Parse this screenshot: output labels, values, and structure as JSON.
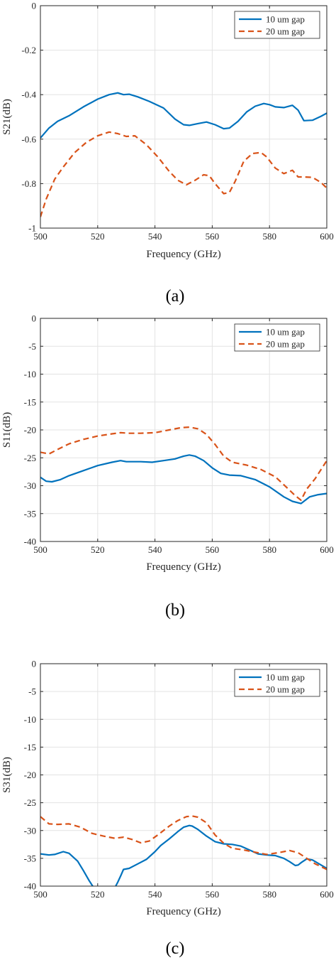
{
  "colors": {
    "series1": "#0072BD",
    "series2": "#D95319",
    "grid": "#e3e3e3",
    "axis": "#262626"
  },
  "chart_data": [
    {
      "type": "line",
      "caption": "(a)",
      "xlabel": "Frequency (GHz)",
      "ylabel": "S21(dB)",
      "xlim": [
        500,
        600
      ],
      "ylim": [
        -1,
        0
      ],
      "xticks": [
        "500",
        "520",
        "540",
        "560",
        "580",
        "600"
      ],
      "yticks": [
        "0",
        "-0.2",
        "-0.4",
        "-0.6",
        "-0.8",
        "-1"
      ],
      "grid": true,
      "legend_position": "top-right",
      "series": [
        {
          "name": "10 um gap",
          "style": "solid",
          "x": [
            500,
            503,
            506,
            510,
            515,
            520,
            524,
            527,
            529,
            531,
            534,
            538,
            543,
            547,
            550,
            552,
            555,
            558,
            561,
            564,
            566,
            569,
            572,
            575,
            578,
            580,
            582,
            585,
            588,
            590,
            592,
            595,
            598,
            600
          ],
          "y": [
            -0.595,
            -0.55,
            -0.52,
            -0.495,
            -0.455,
            -0.42,
            -0.4,
            -0.392,
            -0.4,
            -0.398,
            -0.41,
            -0.43,
            -0.46,
            -0.51,
            -0.535,
            -0.538,
            -0.53,
            -0.523,
            -0.535,
            -0.553,
            -0.55,
            -0.52,
            -0.478,
            -0.452,
            -0.44,
            -0.445,
            -0.455,
            -0.458,
            -0.448,
            -0.47,
            -0.517,
            -0.515,
            -0.497,
            -0.483
          ]
        },
        {
          "name": "20 um gap",
          "style": "dashed",
          "x": [
            500,
            502,
            505,
            508,
            512,
            516,
            520,
            524,
            527,
            530,
            533,
            537,
            541,
            545,
            548,
            551,
            554,
            557,
            559,
            561,
            564,
            566,
            568,
            571,
            574,
            577,
            579,
            582,
            585,
            588,
            590,
            592,
            595,
            598,
            600
          ],
          "y": [
            -0.95,
            -0.87,
            -0.78,
            -0.725,
            -0.66,
            -0.615,
            -0.585,
            -0.568,
            -0.575,
            -0.588,
            -0.585,
            -0.625,
            -0.68,
            -0.745,
            -0.785,
            -0.805,
            -0.785,
            -0.76,
            -0.765,
            -0.8,
            -0.845,
            -0.84,
            -0.79,
            -0.7,
            -0.665,
            -0.66,
            -0.68,
            -0.73,
            -0.755,
            -0.74,
            -0.77,
            -0.77,
            -0.772,
            -0.795,
            -0.82
          ]
        }
      ]
    },
    {
      "type": "line",
      "caption": "(b)",
      "xlabel": "Frequency (GHz)",
      "ylabel": "S11(dB)",
      "xlim": [
        500,
        600
      ],
      "ylim": [
        -40,
        0
      ],
      "xticks": [
        "500",
        "520",
        "540",
        "560",
        "580",
        "600"
      ],
      "yticks": [
        "0",
        "-5",
        "-10",
        "-15",
        "-20",
        "-25",
        "-30",
        "-35",
        "-40"
      ],
      "grid": true,
      "legend_position": "top-right",
      "series": [
        {
          "name": "10 um gap",
          "style": "solid",
          "x": [
            500,
            502,
            504,
            507,
            510,
            515,
            520,
            525,
            528,
            530,
            535,
            539,
            543,
            547,
            550,
            552,
            554,
            557,
            560,
            563,
            566,
            570,
            575,
            580,
            585,
            588,
            591,
            594,
            597,
            600
          ],
          "y": [
            -28.5,
            -29.2,
            -29.3,
            -28.9,
            -28.2,
            -27.3,
            -26.4,
            -25.8,
            -25.5,
            -25.7,
            -25.7,
            -25.8,
            -25.5,
            -25.2,
            -24.7,
            -24.5,
            -24.7,
            -25.5,
            -26.8,
            -27.8,
            -28.1,
            -28.2,
            -28.9,
            -30.2,
            -32.0,
            -32.8,
            -33.2,
            -32.0,
            -31.6,
            -31.4
          ]
        },
        {
          "name": "20 um gap",
          "style": "dashed",
          "x": [
            500,
            503,
            506,
            510,
            515,
            520,
            525,
            528,
            531,
            535,
            540,
            545,
            549,
            552,
            555,
            558,
            561,
            564,
            567,
            572,
            577,
            582,
            586,
            589,
            591,
            593,
            596,
            600
          ],
          "y": [
            -24.0,
            -24.3,
            -23.5,
            -22.5,
            -21.7,
            -21.1,
            -20.7,
            -20.5,
            -20.6,
            -20.6,
            -20.5,
            -20.0,
            -19.6,
            -19.5,
            -19.8,
            -20.8,
            -22.6,
            -24.7,
            -25.8,
            -26.3,
            -27.1,
            -28.4,
            -30.3,
            -31.8,
            -32.6,
            -30.6,
            -28.7,
            -25.5
          ]
        }
      ]
    },
    {
      "type": "line",
      "caption": "(c)",
      "xlabel": "Frequency (GHz)",
      "ylabel": "S31(dB)",
      "xlim": [
        500,
        600
      ],
      "ylim": [
        -40,
        0
      ],
      "xticks": [
        "500",
        "520",
        "540",
        "560",
        "580",
        "600"
      ],
      "yticks": [
        "0",
        "-5",
        "-10",
        "-15",
        "-20",
        "-25",
        "-30",
        "-35",
        "-40"
      ],
      "grid": true,
      "legend_position": "top-right",
      "series": [
        {
          "name": "10 um gap",
          "style": "solid",
          "x": [
            500,
            503,
            505,
            508,
            510,
            513,
            515,
            517,
            519,
            520,
            521,
            525,
            526,
            527,
            528,
            529,
            531,
            534,
            537,
            540,
            542,
            545,
            548,
            550,
            552,
            553,
            555,
            558,
            561,
            564,
            567,
            570,
            573,
            576,
            579,
            582,
            585,
            587,
            589,
            590,
            591,
            593,
            595,
            597,
            600
          ],
          "y": [
            -34.2,
            -34.4,
            -34.3,
            -33.8,
            -34.1,
            -35.5,
            -37.2,
            -39.0,
            -40.6,
            -41,
            -41,
            -41,
            -40.3,
            -39.3,
            -38.2,
            -37.0,
            -36.8,
            -36.0,
            -35.2,
            -33.8,
            -32.7,
            -31.5,
            -30.2,
            -29.4,
            -29.1,
            -29.2,
            -29.8,
            -31.0,
            -32.0,
            -32.4,
            -32.5,
            -32.8,
            -33.5,
            -34.2,
            -34.4,
            -34.5,
            -35.0,
            -35.6,
            -36.3,
            -36.2,
            -35.8,
            -35.1,
            -35.3,
            -35.9,
            -36.8
          ]
        },
        {
          "name": "20 um gap",
          "style": "dashed",
          "x": [
            500,
            503,
            506,
            510,
            514,
            518,
            522,
            526,
            529,
            532,
            535,
            538,
            541,
            545,
            548,
            551,
            553,
            555,
            558,
            561,
            564,
            567,
            571,
            575,
            579,
            583,
            587,
            590,
            593,
            596,
            600
          ],
          "y": [
            -27.5,
            -28.8,
            -28.9,
            -28.8,
            -29.4,
            -30.5,
            -31.0,
            -31.4,
            -31.2,
            -31.6,
            -32.2,
            -31.9,
            -30.8,
            -29.2,
            -28.2,
            -27.5,
            -27.4,
            -27.6,
            -28.6,
            -30.8,
            -32.3,
            -33.2,
            -33.5,
            -33.9,
            -34.3,
            -34.0,
            -33.6,
            -34.0,
            -35.0,
            -36.0,
            -37.0
          ]
        }
      ]
    }
  ]
}
